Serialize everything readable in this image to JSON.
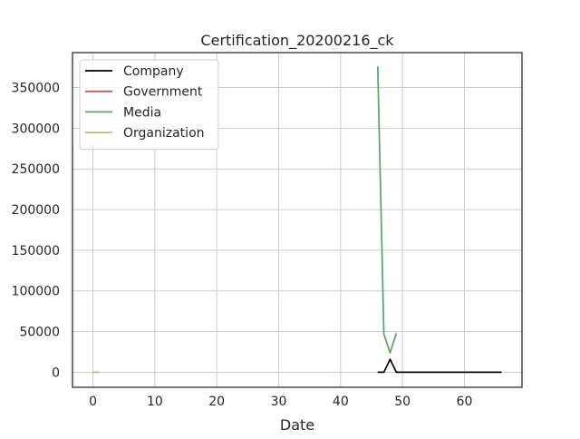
{
  "chart_data": {
    "type": "line",
    "title": "Certification_20200216_ck",
    "xlabel": "Date",
    "ylabel": "",
    "xlim": [
      -3.3,
      69.3
    ],
    "ylim": [
      -18500,
      393000
    ],
    "xticks": [
      0,
      10,
      20,
      30,
      40,
      50,
      60
    ],
    "yticks": [
      0,
      50000,
      100000,
      150000,
      200000,
      250000,
      300000,
      350000
    ],
    "grid": true,
    "legend_position": "top-left",
    "series": [
      {
        "name": "Company",
        "color": "#000000",
        "x": [
          46,
          47,
          48,
          49,
          50,
          51,
          52,
          53,
          54,
          55,
          56,
          57,
          58,
          59,
          60,
          61,
          62,
          63,
          64,
          65,
          66
        ],
        "y": [
          0,
          0,
          16000,
          0,
          0,
          0,
          0,
          0,
          0,
          0,
          0,
          0,
          0,
          0,
          0,
          0,
          0,
          0,
          0,
          0,
          0
        ]
      },
      {
        "name": "Government",
        "color": "#c44e52",
        "x": [],
        "y": []
      },
      {
        "name": "Media",
        "color": "#55a868",
        "x": [
          46,
          47,
          48,
          49
        ],
        "y": [
          376000,
          47000,
          24000,
          48000
        ]
      },
      {
        "name": "Organization",
        "color": "#ccb974",
        "x": [
          0,
          1
        ],
        "y": [
          0,
          0
        ]
      }
    ]
  }
}
